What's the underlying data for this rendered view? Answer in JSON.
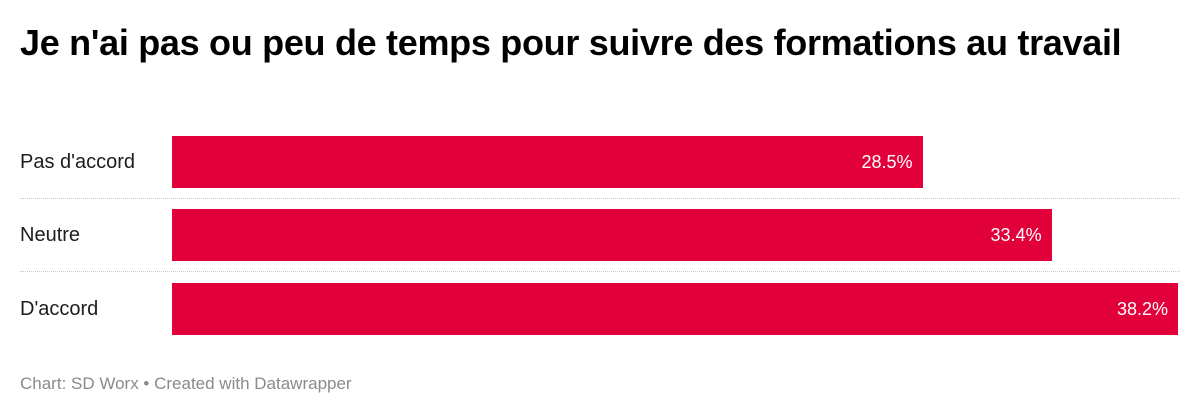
{
  "chart_data": {
    "type": "bar",
    "orientation": "horizontal",
    "title": "Je n'ai pas ou peu de temps pour suivre des formations au travail",
    "categories": [
      "Pas d'accord",
      "Neutre",
      "D'accord"
    ],
    "values": [
      28.5,
      33.4,
      38.2
    ],
    "value_labels": [
      "28.5%",
      "33.4%",
      "38.2%"
    ],
    "xlabel": "",
    "ylabel": "",
    "xlim": [
      0,
      38.2
    ],
    "grid": false,
    "legend": null,
    "bar_color": "#e2003a",
    "footer": "Chart: SD Worx • Created with Datawrapper"
  },
  "header": {
    "title": "Je n'ai pas ou peu de temps pour suivre des formations au travail"
  },
  "rows": [
    {
      "label": "Pas d'accord",
      "value": 28.5,
      "value_label": "28.5%"
    },
    {
      "label": "Neutre",
      "value": 33.4,
      "value_label": "33.4%"
    },
    {
      "label": "D'accord",
      "value": 38.2,
      "value_label": "38.2%"
    }
  ],
  "footer": {
    "text": "Chart: SD Worx • Created with Datawrapper"
  },
  "colors": {
    "bar": "#e2003a",
    "footer_text": "#8a8a8a"
  }
}
